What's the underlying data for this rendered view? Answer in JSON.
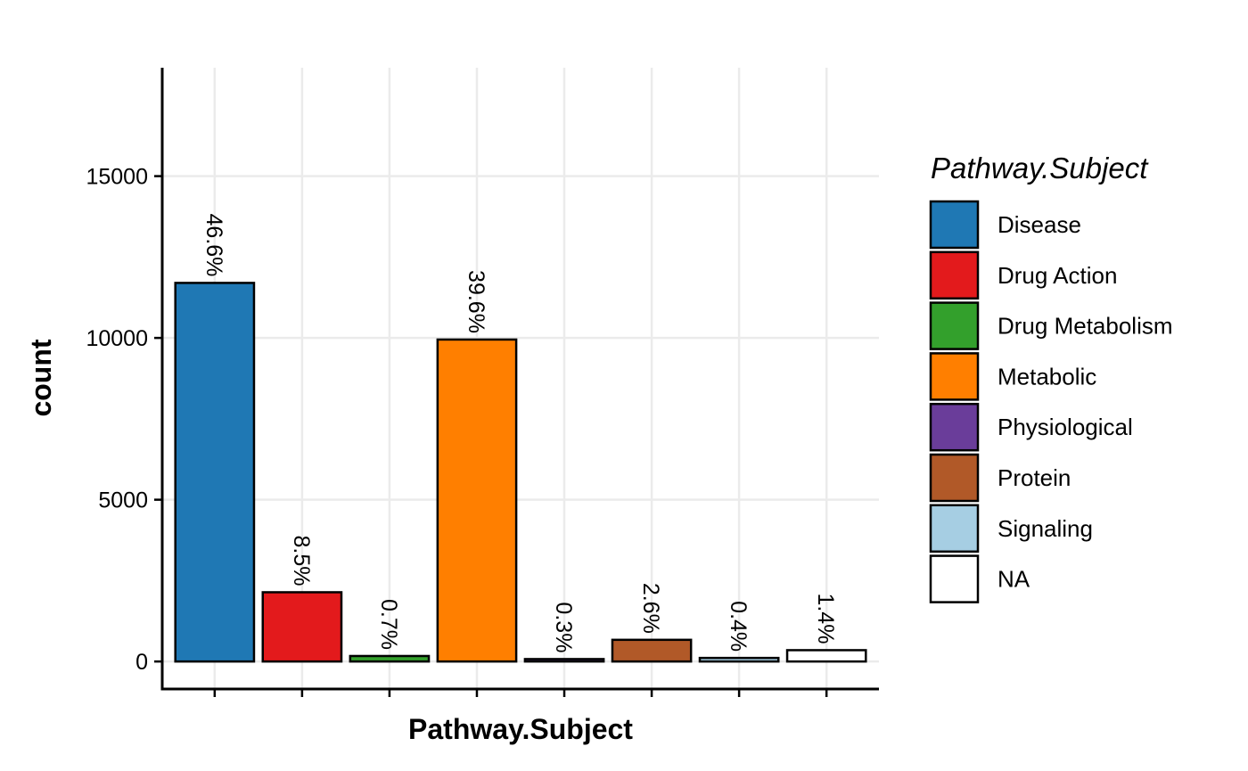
{
  "chart_data": {
    "type": "bar",
    "xlabel": "Pathway.Subject",
    "ylabel": "count",
    "categories": [
      "Disease",
      "Drug Action",
      "Drug Metabolism",
      "Metabolic",
      "Physiological",
      "Protein",
      "Signaling",
      "NA"
    ],
    "values": [
      11700,
      2140,
      170,
      9950,
      75,
      670,
      110,
      350
    ],
    "labels": [
      "46.6%",
      "8.5%",
      "0.7%",
      "39.6%",
      "0.3%",
      "2.6%",
      "0.4%",
      "1.4%"
    ],
    "colors": [
      "#1f78b4",
      "#e31a1c",
      "#33a02c",
      "#ff7f00",
      "#6a3d9a",
      "#b15928",
      "#a6cee3",
      "#ffffff"
    ],
    "ylim": [
      -850,
      18350
    ],
    "yticks": [
      0,
      5000,
      10000,
      15000
    ],
    "ytick_labels": [
      "0",
      "5000",
      "10000",
      "15000"
    ],
    "grid": true,
    "legend": {
      "title": "Pathway.Subject",
      "position": "right",
      "entries": [
        "Disease",
        "Drug Action",
        "Drug Metabolism",
        "Metabolic",
        "Physiological",
        "Protein",
        "Signaling",
        "NA"
      ]
    }
  }
}
